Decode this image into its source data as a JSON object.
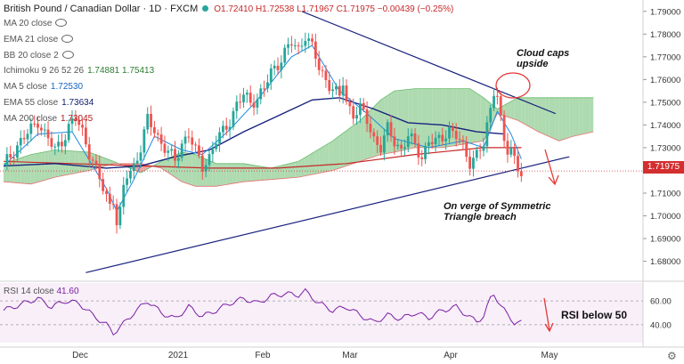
{
  "header": {
    "title": "British Pound / Canadian Dollar · 1D · FXCM",
    "ohlc": "O1.72410 H1.72538 L1.71967 C1.71975 −0.00439 (−0.25%)"
  },
  "indicators": [
    {
      "label": "MA 20 close",
      "value": "",
      "color": "#999999",
      "hidden": true
    },
    {
      "label": "EMA 21 close",
      "value": "",
      "color": "#999999",
      "hidden": true
    },
    {
      "label": "BB 20 close 2",
      "value": "",
      "color": "#999999",
      "hidden": true
    },
    {
      "label": "Ichimoku 9 26 52 26",
      "value": "1.74881 1.75413",
      "color": "#2e7d32",
      "value2color": "#c62828",
      "hidden": false
    },
    {
      "label": "MA 5 close",
      "value": "1.72530",
      "color": "#1565c0",
      "hidden": false
    },
    {
      "label": "EMA 55 close",
      "value": "1.73634",
      "color": "#0d1b6e",
      "hidden": false
    },
    {
      "label": "MA 200 close",
      "value": "1.73045",
      "color": "#b71c1c",
      "hidden": false
    }
  ],
  "annotations": {
    "cloud_caps": [
      "Cloud caps",
      "upside"
    ],
    "triangle": [
      "On verge of Symmetric",
      "Triangle breach"
    ],
    "rsi_note": "RSI below 50"
  },
  "rsi": {
    "label": "RSI 14 close",
    "value": "41.60",
    "levels": [
      "60.00",
      "40.00"
    ]
  },
  "last_price": "1.71975",
  "colors": {
    "up": "#26a69a",
    "down": "#ef5350",
    "cloud_bull": "#a5d6a7",
    "cloud_bear": "#ef9a9a",
    "trendline": "#1a237e",
    "rsi": "#7b1fa2"
  },
  "chart_data": {
    "type": "candlestick",
    "y_ticks": [
      "1.79000",
      "1.78000",
      "1.77000",
      "1.76000",
      "1.75000",
      "1.74000",
      "1.73000",
      "1.72000",
      "1.71000",
      "1.70000",
      "1.69000",
      "1.68000"
    ],
    "ylim": [
      1.672,
      1.795
    ],
    "x_ticks": [
      "Dec",
      "2021",
      "Feb",
      "Mar",
      "Apr",
      "May"
    ],
    "close_path": [
      [
        0,
        1.722
      ],
      [
        4,
        1.731
      ],
      [
        8,
        1.738
      ],
      [
        10,
        1.742
      ],
      [
        12,
        1.736
      ],
      [
        15,
        1.729
      ],
      [
        17,
        1.733
      ],
      [
        19,
        1.739
      ],
      [
        21,
        1.743
      ],
      [
        23,
        1.737
      ],
      [
        25,
        1.728
      ],
      [
        27,
        1.72
      ],
      [
        29,
        1.712
      ],
      [
        31,
        1.705
      ],
      [
        32,
        1.708
      ],
      [
        33,
        1.697
      ],
      [
        34,
        1.701
      ],
      [
        35,
        1.712
      ],
      [
        36,
        1.718
      ],
      [
        38,
        1.722
      ],
      [
        40,
        1.73
      ],
      [
        41,
        1.736
      ],
      [
        42,
        1.742
      ],
      [
        44,
        1.738
      ],
      [
        46,
        1.732
      ],
      [
        48,
        1.728
      ],
      [
        50,
        1.724
      ],
      [
        52,
        1.732
      ],
      [
        54,
        1.736
      ],
      [
        56,
        1.728
      ],
      [
        58,
        1.722
      ],
      [
        60,
        1.726
      ],
      [
        62,
        1.733
      ],
      [
        64,
        1.737
      ],
      [
        66,
        1.742
      ],
      [
        68,
        1.749
      ],
      [
        70,
        1.753
      ],
      [
        72,
        1.75
      ],
      [
        74,
        1.752
      ],
      [
        76,
        1.756
      ],
      [
        78,
        1.763
      ],
      [
        80,
        1.767
      ],
      [
        82,
        1.772
      ],
      [
        84,
        1.776
      ],
      [
        86,
        1.773
      ],
      [
        88,
        1.78
      ],
      [
        90,
        1.774
      ],
      [
        92,
        1.765
      ],
      [
        94,
        1.76
      ],
      [
        96,
        1.756
      ],
      [
        98,
        1.752
      ],
      [
        99,
        1.759
      ],
      [
        100,
        1.75
      ],
      [
        102,
        1.745
      ],
      [
        104,
        1.747
      ],
      [
        106,
        1.742
      ],
      [
        108,
        1.734
      ],
      [
        110,
        1.73
      ],
      [
        112,
        1.738
      ],
      [
        114,
        1.733
      ],
      [
        116,
        1.729
      ],
      [
        118,
        1.735
      ],
      [
        120,
        1.731
      ],
      [
        122,
        1.726
      ],
      [
        124,
        1.733
      ],
      [
        126,
        1.732
      ],
      [
        128,
        1.735
      ],
      [
        130,
        1.738
      ],
      [
        132,
        1.735
      ],
      [
        134,
        1.73
      ],
      [
        136,
        1.724
      ],
      [
        138,
        1.727
      ],
      [
        140,
        1.731
      ],
      [
        142,
        1.747
      ],
      [
        143,
        1.756
      ],
      [
        144,
        1.754
      ],
      [
        145,
        1.742
      ],
      [
        146,
        1.732
      ],
      [
        147,
        1.728
      ],
      [
        148,
        1.729
      ],
      [
        149,
        1.725
      ],
      [
        150,
        1.722
      ],
      [
        151,
        1.72
      ]
    ],
    "ma5": [
      [
        0,
        1.722
      ],
      [
        10,
        1.736
      ],
      [
        20,
        1.737
      ],
      [
        30,
        1.712
      ],
      [
        33,
        1.702
      ],
      [
        38,
        1.716
      ],
      [
        44,
        1.735
      ],
      [
        52,
        1.729
      ],
      [
        58,
        1.727
      ],
      [
        66,
        1.738
      ],
      [
        74,
        1.751
      ],
      [
        84,
        1.77
      ],
      [
        90,
        1.775
      ],
      [
        98,
        1.755
      ],
      [
        106,
        1.745
      ],
      [
        114,
        1.734
      ],
      [
        124,
        1.73
      ],
      [
        134,
        1.733
      ],
      [
        140,
        1.73
      ],
      [
        144,
        1.746
      ],
      [
        148,
        1.736
      ],
      [
        151,
        1.725
      ]
    ],
    "ema55": [
      [
        0,
        1.722
      ],
      [
        15,
        1.723
      ],
      [
        30,
        1.721
      ],
      [
        40,
        1.722
      ],
      [
        50,
        1.726
      ],
      [
        60,
        1.729
      ],
      [
        70,
        1.737
      ],
      [
        80,
        1.744
      ],
      [
        90,
        1.751
      ],
      [
        98,
        1.752
      ],
      [
        108,
        1.747
      ],
      [
        118,
        1.741
      ],
      [
        128,
        1.74
      ],
      [
        138,
        1.737
      ],
      [
        146,
        1.736
      ]
    ],
    "ma200": [
      [
        0,
        1.724
      ],
      [
        20,
        1.723
      ],
      [
        40,
        1.722
      ],
      [
        60,
        1.721
      ],
      [
        80,
        1.721
      ],
      [
        100,
        1.723
      ],
      [
        120,
        1.727
      ],
      [
        140,
        1.73
      ],
      [
        151,
        1.73
      ]
    ],
    "cloud_span_a": [
      [
        0,
        1.723
      ],
      [
        8,
        1.727
      ],
      [
        15,
        1.729
      ],
      [
        25,
        1.728
      ],
      [
        32,
        1.724
      ],
      [
        40,
        1.719
      ],
      [
        46,
        1.724
      ],
      [
        52,
        1.728
      ],
      [
        56,
        1.727
      ],
      [
        62,
        1.723
      ],
      [
        70,
        1.723
      ],
      [
        78,
        1.721
      ],
      [
        86,
        1.724
      ],
      [
        96,
        1.733
      ],
      [
        104,
        1.742
      ],
      [
        110,
        1.751
      ],
      [
        114,
        1.755
      ],
      [
        120,
        1.756
      ],
      [
        128,
        1.756
      ],
      [
        136,
        1.756
      ],
      [
        140,
        1.752
      ],
      [
        144,
        1.747
      ],
      [
        150,
        1.752
      ],
      [
        160,
        1.752
      ],
      [
        172,
        1.752
      ]
    ],
    "cloud_span_b": [
      [
        0,
        1.715
      ],
      [
        8,
        1.714
      ],
      [
        15,
        1.717
      ],
      [
        25,
        1.72
      ],
      [
        32,
        1.723
      ],
      [
        40,
        1.723
      ],
      [
        46,
        1.721
      ],
      [
        52,
        1.715
      ],
      [
        56,
        1.713
      ],
      [
        62,
        1.713
      ],
      [
        70,
        1.715
      ],
      [
        78,
        1.716
      ],
      [
        86,
        1.717
      ],
      [
        96,
        1.72
      ],
      [
        104,
        1.724
      ],
      [
        110,
        1.727
      ],
      [
        114,
        1.728
      ],
      [
        120,
        1.73
      ],
      [
        128,
        1.73
      ],
      [
        136,
        1.732
      ],
      [
        140,
        1.733
      ],
      [
        144,
        1.745
      ],
      [
        150,
        1.742
      ],
      [
        156,
        1.737
      ],
      [
        162,
        1.733
      ],
      [
        166,
        1.735
      ],
      [
        172,
        1.737
      ]
    ],
    "trendline_upper": [
      [
        87,
        1.79
      ],
      [
        161,
        1.745
      ]
    ],
    "trendline_lower": [
      [
        24,
        1.675
      ],
      [
        165,
        1.726
      ]
    ],
    "rsi_ylim": [
      25,
      75
    ],
    "rsi_path": [
      [
        0,
        52
      ],
      [
        6,
        58
      ],
      [
        10,
        62
      ],
      [
        14,
        55
      ],
      [
        18,
        60
      ],
      [
        22,
        58
      ],
      [
        26,
        48
      ],
      [
        30,
        40
      ],
      [
        32,
        33
      ],
      [
        34,
        38
      ],
      [
        38,
        50
      ],
      [
        42,
        60
      ],
      [
        46,
        50
      ],
      [
        50,
        45
      ],
      [
        54,
        55
      ],
      [
        58,
        47
      ],
      [
        62,
        52
      ],
      [
        66,
        58
      ],
      [
        70,
        62
      ],
      [
        74,
        58
      ],
      [
        78,
        64
      ],
      [
        82,
        66
      ],
      [
        86,
        65
      ],
      [
        88,
        68
      ],
      [
        92,
        58
      ],
      [
        96,
        52
      ],
      [
        100,
        55
      ],
      [
        104,
        48
      ],
      [
        108,
        42
      ],
      [
        112,
        48
      ],
      [
        116,
        45
      ],
      [
        120,
        50
      ],
      [
        124,
        46
      ],
      [
        128,
        52
      ],
      [
        132,
        55
      ],
      [
        136,
        46
      ],
      [
        138,
        43
      ],
      [
        140,
        47
      ],
      [
        142,
        62
      ],
      [
        143,
        66
      ],
      [
        145,
        56
      ],
      [
        147,
        48
      ],
      [
        149,
        42
      ],
      [
        151,
        41.6
      ]
    ]
  }
}
